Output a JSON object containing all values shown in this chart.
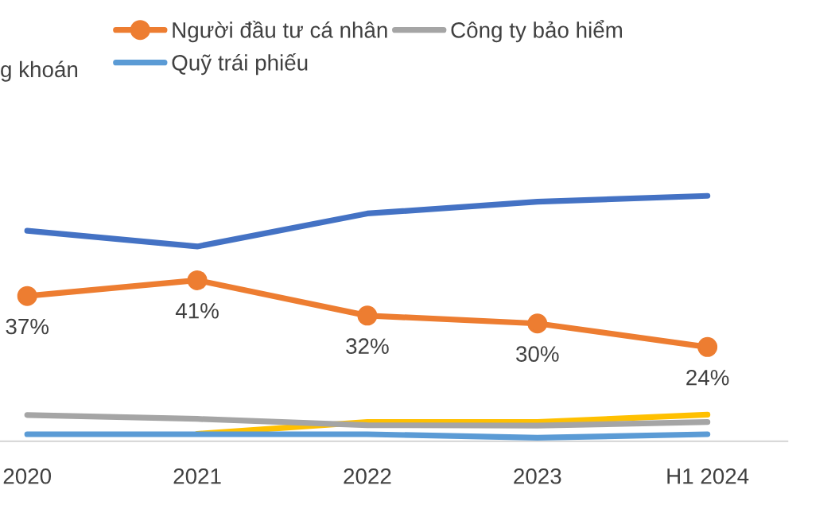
{
  "chart_data": {
    "type": "line",
    "categories": [
      "2020",
      "2021",
      "2022",
      "2023",
      "H1 2024"
    ],
    "tick_labels": "x",
    "grid": false,
    "legend": "top",
    "line_style": "solid",
    "annotations": [
      "g khoán"
    ],
    "series": [
      {
        "name": "Người đầu tư cá nhân",
        "color": "#ed7d31",
        "values": [
          37,
          41,
          32,
          30,
          24
        ],
        "marker": "circle",
        "value_labels": [
          "37%",
          "41%",
          "32%",
          "30%",
          "24%"
        ]
      },
      {
        "name": "Quỹ trái phiếu",
        "color": "#5b9bd5",
        "values": [
          1.8,
          1.8,
          1.8,
          0.9,
          1.8
        ],
        "marker": "none"
      },
      {
        "name": "Công ty bảo hiểm",
        "color": "#a5a5a5",
        "values": [
          6.7,
          5.7,
          4.1,
          4,
          4.9
        ],
        "marker": "none"
      },
      {
        "color": "#ffc000",
        "values": [
          null,
          1.9,
          4.9,
          4.9,
          6.8
        ],
        "marker": "none"
      },
      {
        "color": "#4472c4",
        "values": [
          53.6,
          49.6,
          58,
          61,
          62.5
        ],
        "marker": "none"
      }
    ]
  }
}
